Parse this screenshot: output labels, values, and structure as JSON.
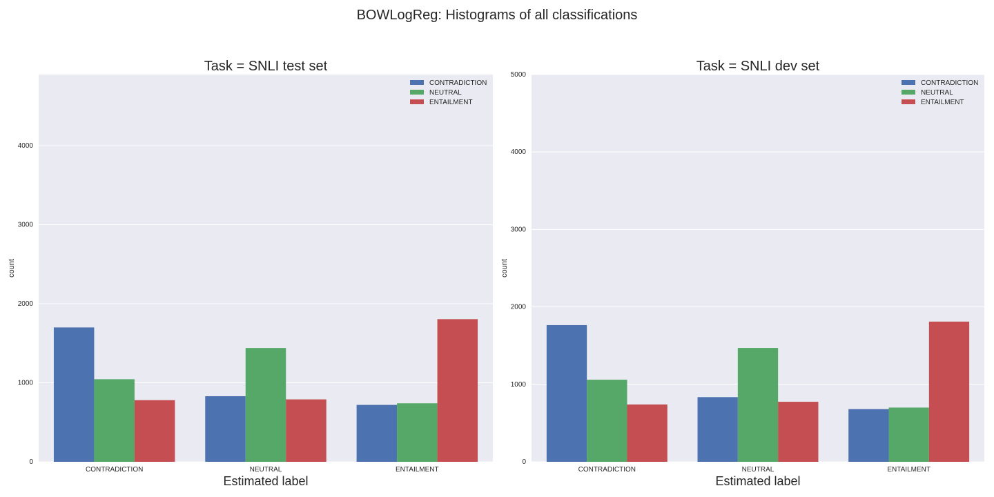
{
  "figure": {
    "title": "BOWLogReg: Histograms of all classifications"
  },
  "chart_data": [
    {
      "type": "bar",
      "title": "Task = SNLI test set",
      "xlabel": "Estimated label",
      "ylabel": "count",
      "categories": [
        "CONTRADICTION",
        "NEUTRAL",
        "ENTAILMENT"
      ],
      "series": [
        {
          "name": "CONTRADICTION",
          "color": "#4C72B0",
          "values": [
            1700,
            830,
            720
          ]
        },
        {
          "name": "NEUTRAL",
          "color": "#55A868",
          "values": [
            1045,
            1440,
            740
          ]
        },
        {
          "name": "ENTAILMENT",
          "color": "#C44E52",
          "values": [
            780,
            790,
            1805
          ]
        }
      ],
      "ylim": [
        0,
        4900
      ],
      "yticks": [
        0,
        1000,
        2000,
        3000,
        4000
      ],
      "grid": true,
      "legend": "top-right"
    },
    {
      "type": "bar",
      "title": "Task = SNLI dev set",
      "xlabel": "Estimated label",
      "ylabel": "count",
      "categories": [
        "CONTRADICTION",
        "NEUTRAL",
        "ENTAILMENT"
      ],
      "series": [
        {
          "name": "CONTRADICTION",
          "color": "#4C72B0",
          "values": [
            1765,
            835,
            680
          ]
        },
        {
          "name": "NEUTRAL",
          "color": "#55A868",
          "values": [
            1060,
            1470,
            700
          ]
        },
        {
          "name": "ENTAILMENT",
          "color": "#C44E52",
          "values": [
            740,
            775,
            1810
          ]
        }
      ],
      "ylim": [
        0,
        5000
      ],
      "yticks": [
        0,
        1000,
        2000,
        3000,
        4000,
        5000
      ],
      "grid": true,
      "legend": "top-right"
    }
  ]
}
